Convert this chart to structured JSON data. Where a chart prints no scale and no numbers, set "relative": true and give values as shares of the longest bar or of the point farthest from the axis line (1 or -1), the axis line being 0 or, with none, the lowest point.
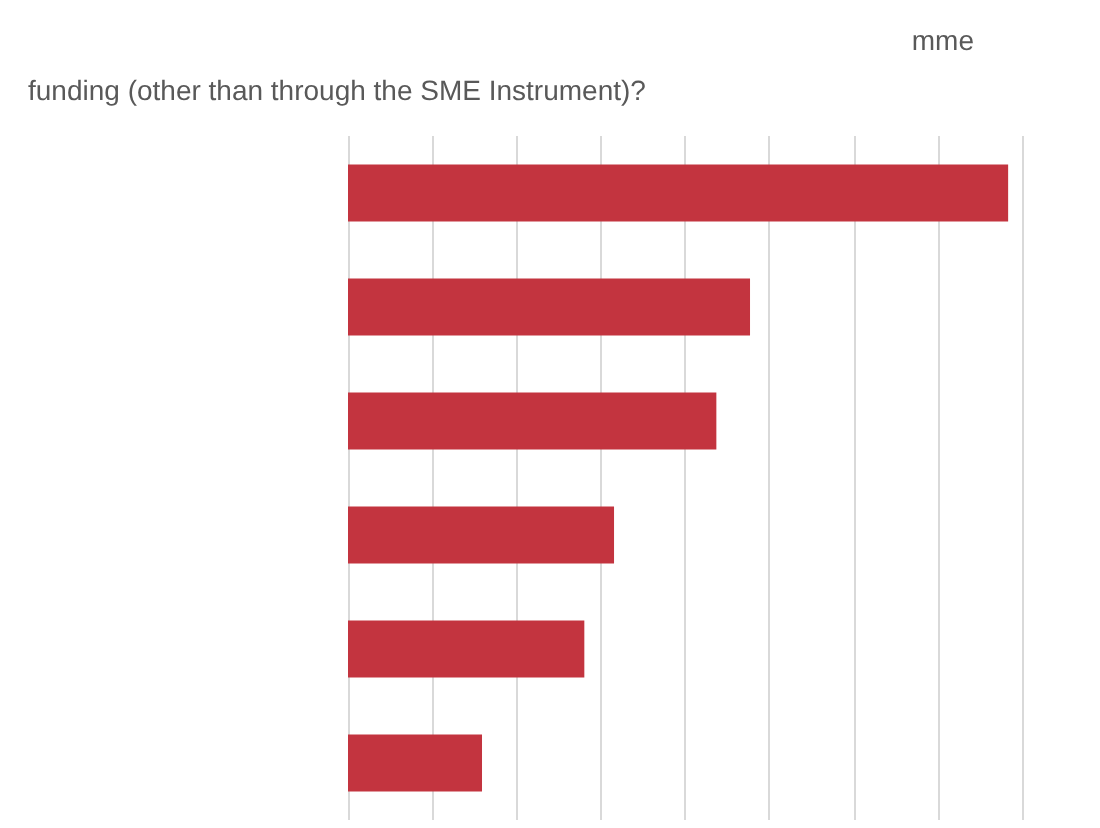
{
  "chart_data": {
    "type": "bar",
    "orientation": "horizontal",
    "relative": true,
    "title": "mme",
    "subtitle": "funding (other than through the SME Instrument)?",
    "categories": [
      null,
      null,
      null,
      null,
      null,
      null
    ],
    "values": [
      1,
      0.609,
      0.558,
      0.403,
      0.358,
      0.203
    ],
    "color": "#c3343f",
    "grid": "x"
  }
}
